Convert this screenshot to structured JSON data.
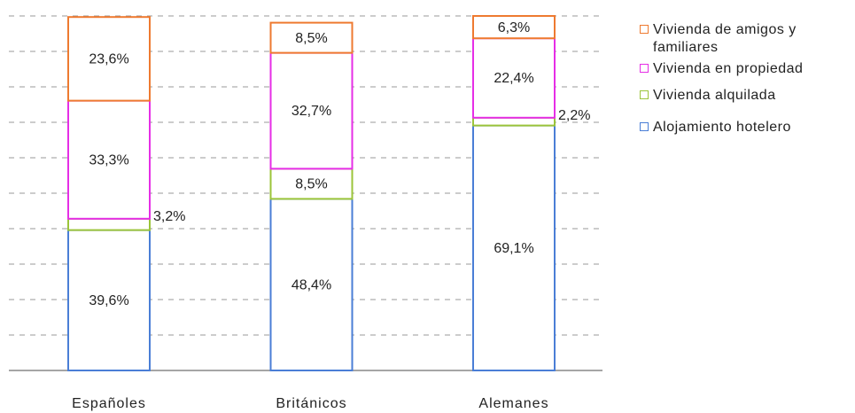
{
  "chart_data": {
    "type": "stacked_bar",
    "categories": [
      "Españoles",
      "Británicos",
      "Alemanes"
    ],
    "series": [
      {
        "name": "Alojamiento hotelero",
        "color": "#4a7ed6",
        "values": [
          39.6,
          48.4,
          69.1
        ],
        "value_labels": [
          "39,6%",
          "48,4%",
          "69,1%"
        ]
      },
      {
        "name": "Vivienda alquilada",
        "color": "#9bc43a",
        "values": [
          3.2,
          8.5,
          2.2
        ],
        "value_labels": [
          "3,2%",
          "8,5%",
          "2,2%"
        ]
      },
      {
        "name": "Vivienda en propiedad",
        "color": "#e62ee6",
        "values": [
          33.3,
          32.7,
          22.4
        ],
        "value_labels": [
          "33,3%",
          "32,7%",
          "22,4%"
        ]
      },
      {
        "name": "Vivienda de amigos y familiares",
        "color": "#ee7a30",
        "values": [
          23.6,
          8.5,
          6.3
        ],
        "value_labels": [
          "23,6%",
          "8,5%",
          "6,3%"
        ]
      }
    ],
    "ylim": [
      0,
      100
    ],
    "yticks": [
      0,
      10,
      20,
      30,
      40,
      50,
      60,
      70,
      80,
      90,
      100
    ],
    "grid": true,
    "legend": "right"
  }
}
